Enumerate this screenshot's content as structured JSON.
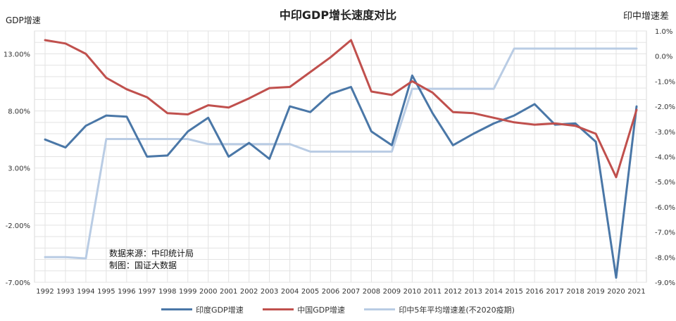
{
  "chart_data": {
    "type": "line",
    "title": "中印GDP增长速度对比",
    "ylabel": "GDP增速",
    "ylabel_right": "印中增速差",
    "x": [
      "1992",
      "1993",
      "1994",
      "1995",
      "1996",
      "1997",
      "1998",
      "1999",
      "2000",
      "2001",
      "2002",
      "2003",
      "2004",
      "2005",
      "2006",
      "2007",
      "2008",
      "2009",
      "2010",
      "2011",
      "2012",
      "2013",
      "2014",
      "2015",
      "2016",
      "2017",
      "2018",
      "2019",
      "2020",
      "2021"
    ],
    "ylim": [
      -7,
      15
    ],
    "y_ticks": [
      "13.00%",
      "8.00%",
      "3.00%",
      "-2.00%",
      "-7.00%"
    ],
    "y_tick_values": [
      13,
      8,
      3,
      -2,
      -7
    ],
    "y2lim": [
      -9,
      1
    ],
    "y2_ticks": [
      "1.0%",
      "0.0%",
      "-1.0%",
      "-2.0%",
      "-3.0%",
      "-4.0%",
      "-5.0%",
      "-6.0%",
      "-7.0%",
      "-8.0%",
      "-9.0%"
    ],
    "y2_tick_values": [
      1,
      0,
      -1,
      -2,
      -3,
      -4,
      -5,
      -6,
      -7,
      -8,
      -9
    ],
    "grid": true,
    "legend_position": "bottom",
    "series": [
      {
        "name": "印度GDP增速",
        "axis": "left",
        "color": "#4a77a7",
        "values": [
          5.5,
          4.8,
          6.7,
          7.6,
          7.5,
          4.0,
          4.1,
          6.2,
          7.4,
          4.0,
          5.2,
          3.8,
          8.4,
          7.9,
          9.5,
          10.1,
          6.2,
          5.0,
          11.1,
          7.8,
          5.0,
          6.0,
          6.9,
          7.6,
          8.6,
          6.8,
          6.9,
          5.3,
          -6.6,
          8.4
        ]
      },
      {
        "name": "中国GDP增速",
        "axis": "left",
        "color": "#c0504d",
        "values": [
          14.2,
          13.9,
          13.0,
          10.9,
          9.9,
          9.2,
          7.8,
          7.7,
          8.5,
          8.3,
          9.1,
          10.0,
          10.1,
          11.4,
          12.7,
          14.2,
          9.7,
          9.4,
          10.6,
          9.6,
          7.9,
          7.8,
          7.4,
          7.0,
          6.8,
          6.9,
          6.7,
          6.0,
          2.2,
          8.1
        ]
      },
      {
        "name": "印中5年平均增速差(不2020疫期)",
        "axis": "right",
        "color": "#b9cce4",
        "values": [
          -8.0,
          -8.0,
          -8.05,
          -3.3,
          -3.3,
          -3.3,
          -3.3,
          -3.3,
          -3.5,
          -3.5,
          -3.5,
          -3.5,
          -3.5,
          -3.8,
          -3.8,
          -3.8,
          -3.8,
          -3.8,
          -1.3,
          -1.3,
          -1.3,
          -1.3,
          -1.3,
          0.3,
          0.3,
          0.3,
          0.3,
          0.3,
          0.3,
          0.3
        ]
      }
    ]
  },
  "annotation": {
    "line1": "数据来源：中印统计局",
    "line2": "制图：国证大数据"
  }
}
